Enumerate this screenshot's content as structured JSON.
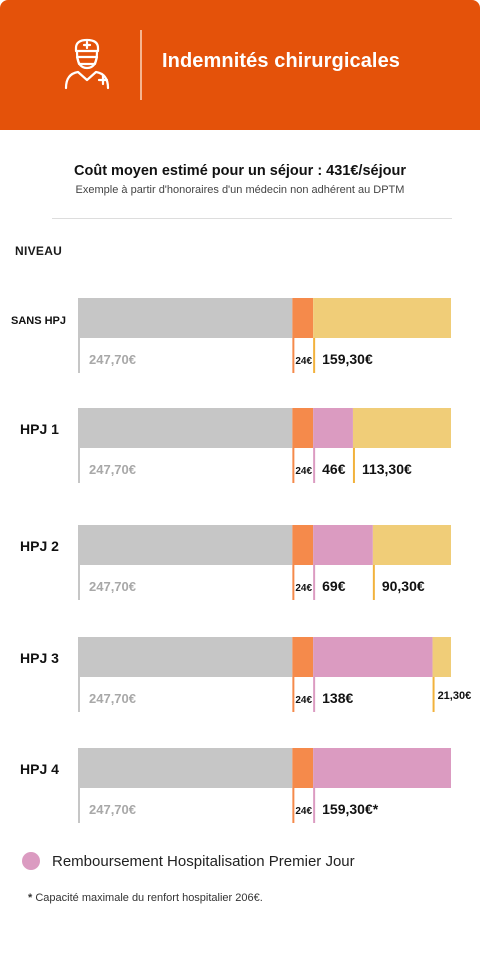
{
  "header": {
    "title": "Indemnités chirurgicales",
    "icon": "surgeon-icon"
  },
  "subtitle": {
    "main": "Coût moyen estimé pour un séjour : 431€/séjour",
    "sub": "Exemple à partir d'honoraires d'un médecin non adhérent au DPTM"
  },
  "niveau_label": "NIVEAU",
  "colors": {
    "header": "#e4520a",
    "grey": "#c6c6c6",
    "orange": "#f58a4b",
    "pink": "#db9bc1",
    "yellow": "#f0cd78",
    "grey_label": "#a8a8a8"
  },
  "chart_data": {
    "type": "bar",
    "orientation": "horizontal",
    "stacked": true,
    "total": 431,
    "categories": [
      "SANS HPJ",
      "HPJ 1",
      "HPJ 2",
      "HPJ 3",
      "HPJ 4"
    ],
    "series": [
      {
        "key": "base",
        "values": [
          247.7,
          247.7,
          247.7,
          247.7,
          247.7
        ],
        "labels": [
          "247,70€",
          "247,70€",
          "247,70€",
          "247,70€",
          "247,70€"
        ]
      },
      {
        "key": "fixed",
        "values": [
          24,
          24,
          24,
          24,
          24
        ],
        "labels": [
          "24€",
          "24€",
          "24€",
          "24€",
          "24€"
        ]
      },
      {
        "key": "hpj",
        "name": "Remboursement Hospitalisation Premier Jour",
        "values": [
          0,
          46,
          69,
          138,
          159.3
        ],
        "labels": [
          "",
          "46€",
          "69€",
          "138€",
          "159,30€*"
        ]
      },
      {
        "key": "remaining",
        "values": [
          159.3,
          113.3,
          90.3,
          21.3,
          0
        ],
        "labels": [
          "159,30€",
          "113,30€",
          "90,30€",
          "21,30€",
          ""
        ]
      }
    ]
  },
  "legend": {
    "label": "Remboursement Hospitalisation Premier Jour"
  },
  "note": {
    "star": "*",
    "text": "Capacité maximale du renfort hospitalier 206€."
  }
}
